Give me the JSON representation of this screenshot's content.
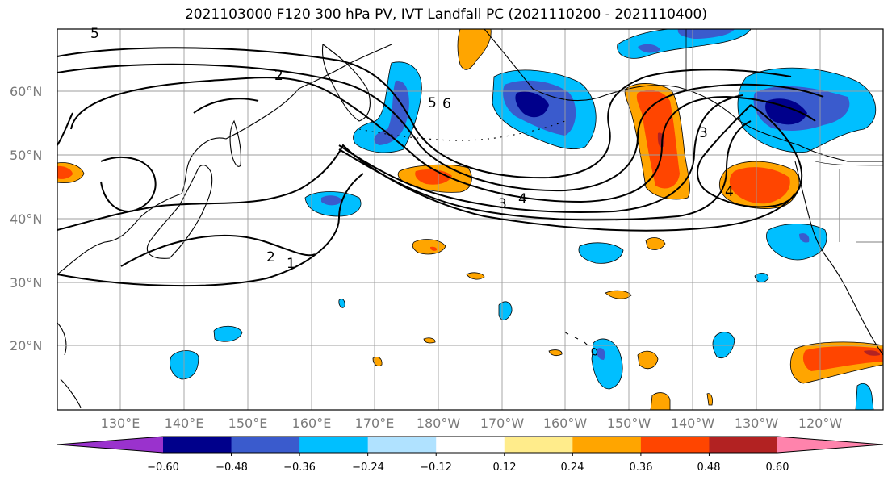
{
  "title": "2021103000 F120 300 hPa PV, IVT Landfall PC (2021110200 - 2021110400)",
  "lat_labels": [
    "60°N",
    "50°N",
    "40°N",
    "30°N",
    "20°N"
  ],
  "lon_labels": [
    "130°E",
    "140°E",
    "150°E",
    "160°E",
    "170°E",
    "180°W",
    "170°W",
    "160°W",
    "150°W",
    "140°W",
    "130°W",
    "120°W"
  ],
  "contour_labels": [
    "5",
    "2",
    "5",
    "6",
    "3",
    "4",
    "3",
    "4",
    "2",
    "1"
  ],
  "colorbar": {
    "colors": [
      "#9a32cd",
      "#00008b",
      "#3a5bcd",
      "#00bfff",
      "#b0e2ff",
      "#ffffff",
      "#ffec8b",
      "#ffa500",
      "#ff4500",
      "#b22222",
      "#ff83ac"
    ],
    "tick_labels": [
      "−0.60",
      "−0.48",
      "−0.36",
      "−0.24",
      "−0.12",
      "0.12",
      "0.24",
      "0.36",
      "0.48",
      "0.60"
    ]
  }
}
